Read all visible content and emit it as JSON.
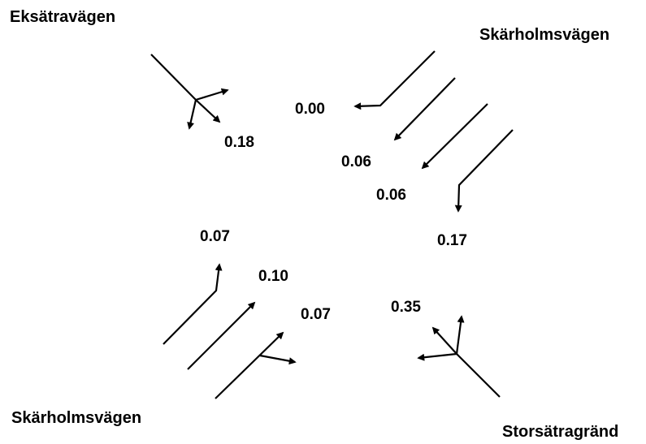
{
  "roads": {
    "northwest": "Eksätravägen",
    "northeast": "Skärholmsvägen",
    "southwest": "Skärholmsvägen",
    "southeast": "Storsätragränd"
  },
  "flows": {
    "nw_mixed": "0.18",
    "ne_left": "0.00",
    "ne_through_1": "0.06",
    "ne_through_2": "0.06",
    "ne_right": "0.17",
    "sw_left": "0.07",
    "sw_through": "0.10",
    "sw_through_right": "0.07",
    "se_mixed": "0.35"
  },
  "colors": {
    "ink": "#000000",
    "background": "#ffffff"
  }
}
